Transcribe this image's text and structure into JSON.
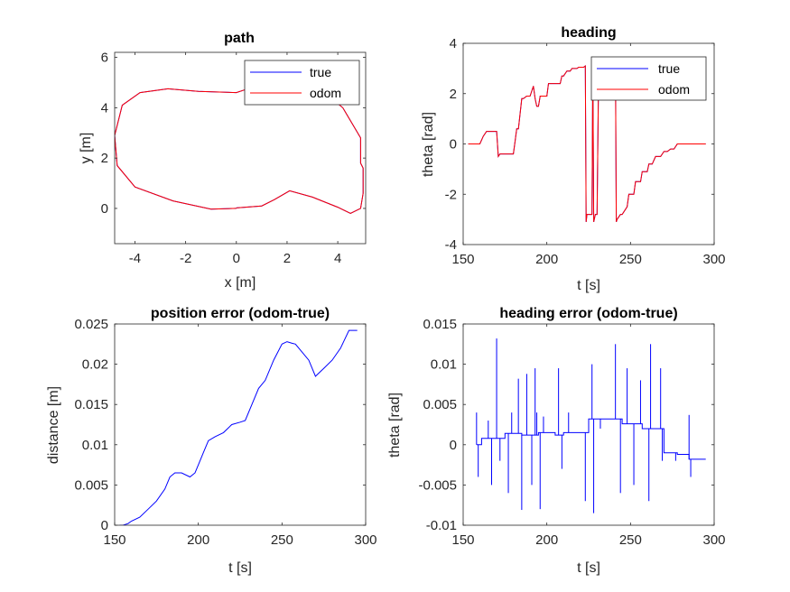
{
  "chart_data": [
    {
      "type": "line",
      "title": "path",
      "xlabel": "x [m]",
      "ylabel": "y [m]",
      "xlim": [
        -4.8,
        5.1
      ],
      "ylim": [
        -1.4,
        6.2
      ],
      "xticks": [
        -4,
        -2,
        0,
        2,
        4
      ],
      "yticks": [
        0,
        2,
        4,
        6
      ],
      "legend": {
        "position": "top-right",
        "entries": [
          "true",
          "odom"
        ]
      },
      "series": [
        {
          "name": "true",
          "color": "#0000ff",
          "x": [
            0.0,
            -1.0,
            -2.5,
            -4.0,
            -4.7,
            -4.8,
            -4.5,
            -3.8,
            -2.7,
            -1.5,
            0.0,
            0.3,
            0.6,
            1.2,
            2.0,
            2.8,
            3.6,
            4.2,
            4.9,
            4.9,
            5.0,
            5.0,
            4.9,
            4.5,
            4.0,
            3.0,
            2.1,
            1.5,
            1.0,
            0.0
          ],
          "y": [
            0.0,
            -0.03,
            0.3,
            0.85,
            1.7,
            2.9,
            4.1,
            4.6,
            4.75,
            4.65,
            4.6,
            4.7,
            4.8,
            4.8,
            4.7,
            4.6,
            4.5,
            4.0,
            2.8,
            1.8,
            1.6,
            0.6,
            0.0,
            -0.2,
            0.05,
            0.45,
            0.7,
            0.35,
            0.1,
            0.02
          ]
        },
        {
          "name": "odom",
          "color": "#ff0000",
          "x": [
            0.0,
            -1.0,
            -2.5,
            -4.0,
            -4.7,
            -4.8,
            -4.5,
            -3.8,
            -2.7,
            -1.5,
            0.0,
            0.3,
            0.6,
            1.2,
            2.0,
            2.8,
            3.6,
            4.2,
            4.9,
            4.9,
            5.0,
            5.0,
            4.9,
            4.5,
            4.0,
            3.0,
            2.1,
            1.5,
            1.0,
            0.0
          ],
          "y": [
            0.0,
            -0.03,
            0.3,
            0.85,
            1.7,
            2.9,
            4.1,
            4.6,
            4.75,
            4.65,
            4.6,
            4.7,
            4.8,
            4.8,
            4.7,
            4.6,
            4.5,
            4.0,
            2.8,
            1.8,
            1.6,
            0.6,
            0.0,
            -0.2,
            0.05,
            0.45,
            0.7,
            0.35,
            0.1,
            0.02
          ]
        }
      ]
    },
    {
      "type": "line",
      "title": "heading",
      "xlabel": "t [s]",
      "ylabel": "theta [rad]",
      "xlim": [
        150,
        300
      ],
      "ylim": [
        -4,
        4
      ],
      "xticks": [
        150,
        200,
        250,
        300
      ],
      "yticks": [
        -4,
        -2,
        0,
        2,
        4
      ],
      "legend": {
        "position": "top-right",
        "entries": [
          "true",
          "odom"
        ]
      },
      "series": [
        {
          "name": "true",
          "color": "#0000ff",
          "x": [
            153,
            160,
            162,
            164,
            166,
            167,
            170,
            171,
            172,
            173,
            180,
            181,
            182,
            183,
            185,
            186,
            188,
            189,
            190,
            192,
            193,
            194,
            195,
            196,
            200,
            201,
            208,
            209,
            210,
            212,
            214,
            215,
            218,
            219,
            222,
            223,
            223.5,
            224,
            225,
            226,
            227,
            227.5,
            228,
            229,
            230,
            231,
            235,
            240,
            241,
            241.5,
            242,
            243,
            244,
            245,
            248,
            249,
            252,
            253,
            256,
            257,
            260,
            261,
            263,
            265,
            268,
            270,
            272,
            274,
            276,
            278,
            282,
            284,
            286,
            295
          ],
          "y": [
            0.0,
            0.0,
            0.3,
            0.5,
            0.5,
            0.5,
            0.5,
            -0.5,
            -0.4,
            -0.4,
            -0.4,
            0.1,
            0.6,
            0.6,
            1.8,
            1.8,
            1.9,
            1.9,
            1.9,
            2.3,
            1.8,
            1.5,
            1.5,
            1.9,
            1.9,
            2.4,
            2.4,
            2.7,
            2.7,
            2.9,
            2.9,
            3.0,
            3.0,
            3.05,
            3.05,
            3.1,
            -3.1,
            -2.8,
            -2.8,
            -2.8,
            -2.8,
            3.1,
            -3.1,
            -2.8,
            -2.8,
            3.1,
            3.1,
            3.1,
            3.1,
            -3.1,
            -3.0,
            -2.9,
            -2.8,
            -2.8,
            -2.5,
            -2.0,
            -2.0,
            -1.5,
            -1.5,
            -1.1,
            -1.1,
            -0.8,
            -0.8,
            -0.5,
            -0.5,
            -0.3,
            -0.3,
            -0.2,
            -0.2,
            0.0,
            0.0,
            0.0,
            0.0,
            0.0
          ]
        },
        {
          "name": "odom",
          "color": "#ff0000",
          "x": [
            153,
            160,
            162,
            164,
            166,
            167,
            170,
            171,
            172,
            173,
            180,
            181,
            182,
            183,
            185,
            186,
            188,
            189,
            190,
            192,
            193,
            194,
            195,
            196,
            200,
            201,
            208,
            209,
            210,
            212,
            214,
            215,
            218,
            219,
            222,
            223,
            223.5,
            224,
            225,
            226,
            227,
            227.5,
            228,
            229,
            230,
            231,
            235,
            240,
            241,
            241.5,
            242,
            243,
            244,
            245,
            248,
            249,
            252,
            253,
            256,
            257,
            260,
            261,
            263,
            265,
            268,
            270,
            272,
            274,
            276,
            278,
            282,
            284,
            286,
            295
          ],
          "y": [
            0.0,
            0.0,
            0.3,
            0.5,
            0.5,
            0.5,
            0.5,
            -0.5,
            -0.4,
            -0.4,
            -0.4,
            0.1,
            0.6,
            0.6,
            1.8,
            1.8,
            1.9,
            1.9,
            1.9,
            2.3,
            1.8,
            1.5,
            1.5,
            1.9,
            1.9,
            2.4,
            2.4,
            2.7,
            2.7,
            2.9,
            2.9,
            3.0,
            3.0,
            3.05,
            3.05,
            3.1,
            -3.1,
            -2.8,
            -2.8,
            -2.8,
            -2.8,
            3.1,
            -3.1,
            -2.8,
            -2.8,
            3.1,
            3.1,
            3.1,
            3.1,
            -3.1,
            -3.0,
            -2.9,
            -2.8,
            -2.8,
            -2.5,
            -2.0,
            -2.0,
            -1.5,
            -1.5,
            -1.1,
            -1.1,
            -0.8,
            -0.8,
            -0.5,
            -0.5,
            -0.3,
            -0.3,
            -0.2,
            -0.2,
            0.0,
            0.0,
            0.0,
            0.0,
            0.0
          ]
        }
      ]
    },
    {
      "type": "line",
      "title": "position error (odom-true)",
      "xlabel": "t [s]",
      "ylabel": "distance [m]",
      "xlim": [
        150,
        300
      ],
      "ylim": [
        0,
        0.025
      ],
      "xticks": [
        150,
        200,
        250,
        300
      ],
      "yticks": [
        0,
        0.005,
        0.01,
        0.015,
        0.02,
        0.025
      ],
      "series": [
        {
          "color": "#0000ff",
          "x": [
            153,
            155,
            158,
            160,
            165,
            170,
            175,
            180,
            183,
            186,
            190,
            195,
            198,
            200,
            203,
            206,
            210,
            215,
            220,
            225,
            228,
            232,
            236,
            240,
            245,
            250,
            253,
            256,
            258,
            262,
            266,
            270,
            275,
            280,
            285,
            290,
            295
          ],
          "y": [
            0.0,
            0.0,
            0.0002,
            0.0005,
            0.001,
            0.002,
            0.003,
            0.0045,
            0.006,
            0.0065,
            0.0065,
            0.006,
            0.0065,
            0.0075,
            0.009,
            0.0105,
            0.011,
            0.0115,
            0.0125,
            0.0128,
            0.013,
            0.015,
            0.017,
            0.018,
            0.0205,
            0.0225,
            0.0228,
            0.0226,
            0.0225,
            0.0215,
            0.0205,
            0.0185,
            0.0195,
            0.0205,
            0.022,
            0.0242,
            0.0242
          ]
        }
      ]
    },
    {
      "type": "line",
      "title": "heading error (odom-true)",
      "xlabel": "t [s]",
      "ylabel": "theta [rad]",
      "xlim": [
        150,
        300
      ],
      "ylim": [
        -0.01,
        0.015
      ],
      "xticks": [
        150,
        200,
        250,
        300
      ],
      "yticks": [
        -0.01,
        -0.005,
        0,
        0.005,
        0.01,
        0.015
      ],
      "series": [
        {
          "color": "#0000ff",
          "x": [
            158,
            161,
            161,
            175,
            175,
            185,
            185,
            195,
            195,
            205,
            205,
            210,
            210,
            225,
            225,
            245,
            245,
            257,
            257,
            270,
            270,
            278,
            278,
            285,
            285,
            295
          ],
          "y": [
            0.0,
            0.0,
            0.0008,
            0.0008,
            0.0014,
            0.0014,
            0.0012,
            0.0012,
            0.0015,
            0.0015,
            0.0012,
            0.0012,
            0.0015,
            0.0015,
            0.0032,
            0.0032,
            0.0026,
            0.0026,
            0.002,
            0.002,
            -0.001,
            -0.001,
            -0.0012,
            -0.0012,
            -0.0018,
            -0.0018
          ]
        },
        {
          "color": "#0000ff",
          "spikes": [
            [
              158,
              0.004
            ],
            [
              159,
              -0.004
            ],
            [
              165,
              0.003
            ],
            [
              167,
              -0.005
            ],
            [
              170,
              0.0132
            ],
            [
              172,
              -0.002
            ],
            [
              177,
              -0.006
            ],
            [
              179,
              0.004
            ],
            [
              183,
              0.0082
            ],
            [
              185,
              -0.0081
            ],
            [
              188,
              0.0088
            ],
            [
              191,
              -0.005
            ],
            [
              193,
              0.0095
            ],
            [
              194,
              0.004
            ],
            [
              196,
              -0.008
            ],
            [
              198,
              0.0035
            ],
            [
              207,
              0.0095
            ],
            [
              209,
              -0.003
            ],
            [
              213,
              0.004
            ],
            [
              223,
              -0.007
            ],
            [
              227,
              0.01
            ],
            [
              228,
              -0.0085
            ],
            [
              232,
              0.002
            ],
            [
              241,
              0.0125
            ],
            [
              244,
              -0.006
            ],
            [
              248,
              0.0095
            ],
            [
              252,
              -0.005
            ],
            [
              256,
              0.008
            ],
            [
              261,
              -0.007
            ],
            [
              262,
              0.0125
            ],
            [
              268,
              0.0095
            ],
            [
              269,
              -0.002
            ],
            [
              277,
              -0.002
            ],
            [
              285,
              0.0037
            ],
            [
              286,
              -0.004
            ]
          ]
        }
      ]
    }
  ]
}
